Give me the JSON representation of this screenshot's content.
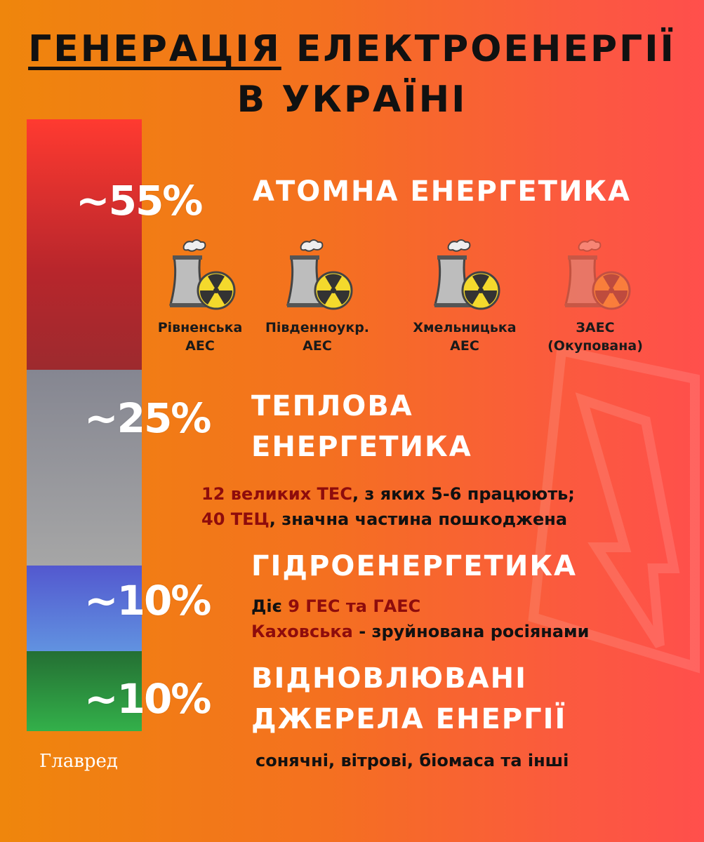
{
  "title": {
    "underlined": "ГЕНЕРАЦІЯ",
    "rest": " ЕЛЕКТРОЕНЕРГІЇ",
    "line2": "В УКРАЇНІ"
  },
  "colors": {
    "nuclear": "#c52a2f",
    "thermal": "#9a9a9c",
    "hydro": "#5d78d6",
    "renewable": "#2f9b3d",
    "dark_red": "#8e0c0c"
  },
  "chart_data": {
    "type": "bar",
    "stacked": true,
    "categories": [
      "АТОМНА ЕНЕРГЕТИКА",
      "ТЕПЛОВА ЕНЕРГЕТИКА",
      "ГІДРОЕНЕРГЕТИКА",
      "ВІДНОВЛЮВАНІ ДЖЕРЕЛА ЕНЕРГІЇ"
    ],
    "values": [
      55,
      25,
      10,
      10
    ],
    "labels": [
      "~55%",
      "~25%",
      "~10%",
      "~10%"
    ]
  },
  "nuclear": {
    "heading": "АТОМНА ЕНЕРГЕТИКА",
    "plants": [
      {
        "l1": "Рівненська",
        "l2": "АЕС",
        "icon": "nuclear-plant-icon",
        "occupied": false
      },
      {
        "l1": "Південноукр.",
        "l2": "АЕС",
        "icon": "nuclear-plant-icon",
        "occupied": false
      },
      {
        "l1": "Хмельницька",
        "l2": "АЕС",
        "icon": "nuclear-plant-icon",
        "occupied": false
      },
      {
        "l1": "ЗАЕС",
        "l2": "(Окупована)",
        "icon": "nuclear-plant-icon",
        "occupied": true
      }
    ]
  },
  "thermal": {
    "heading1": "ТЕПЛОВА",
    "heading2": "ЕНЕРГЕТИКА",
    "n1a": "12 великих ТЕС",
    "n1b": ", з яких 5-6 працюють;",
    "n2a": "40 ТЕЦ",
    "n2b": ", значна частина пошкоджена"
  },
  "hydro": {
    "heading": "ГІДРОЕНЕРГЕТИКА",
    "n1a": "Діє ",
    "n1b": "9 ГЕС та ГАЕС",
    "n2a": "Каховська",
    "n2b": " - зруйнована росіянами"
  },
  "renewable": {
    "heading1": "ВІДНОВЛЮВАНІ",
    "heading2": "ДЖЕРЕЛА ЕНЕРГІЇ",
    "note": "сонячні, вітрові, біомаса та інші"
  },
  "logo": "Главред"
}
